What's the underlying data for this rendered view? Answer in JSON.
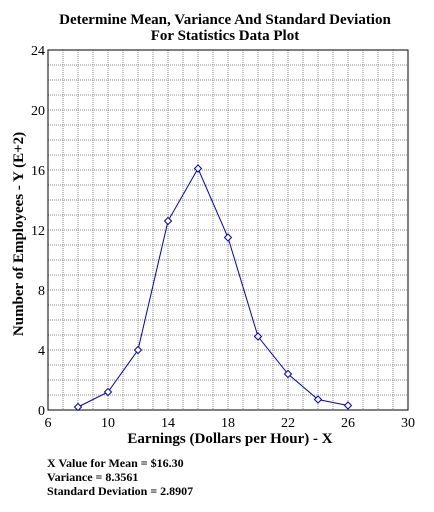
{
  "chart_data": {
    "type": "line",
    "title": [
      "Determine Mean, Variance And Standard Deviation",
      "For Statistics Data Plot"
    ],
    "xlabel": "Earnings (Dollars per Hour) - X",
    "ylabel": "Number of Employees - Y (E+2)",
    "xlim": [
      6,
      30
    ],
    "ylim": [
      0,
      24
    ],
    "x_ticks": [
      "6",
      "10",
      "14",
      "18",
      "22",
      "26",
      "30"
    ],
    "y_ticks": [
      "0",
      "4",
      "8",
      "12",
      "16",
      "20",
      "24"
    ],
    "grid": true,
    "line_color": "#0000cc",
    "x": [
      8,
      10,
      12,
      14,
      16,
      18,
      20,
      22,
      24,
      26
    ],
    "y": [
      0.2,
      1.2,
      4.0,
      12.6,
      16.1,
      11.5,
      4.9,
      2.4,
      0.7,
      0.3
    ]
  },
  "stats": {
    "mean": "X Value for Mean = $16.30",
    "variance": "Variance = 8.3561",
    "std_dev": "Standard Deviation = 2.8907"
  }
}
